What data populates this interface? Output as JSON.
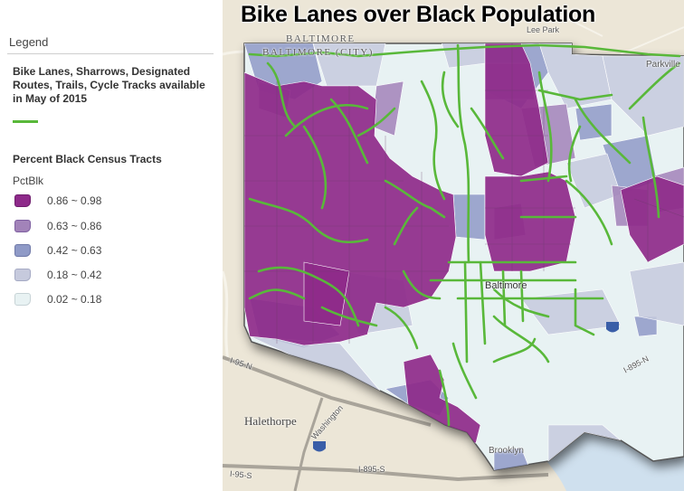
{
  "map": {
    "title": "Bike Lanes over Black Population",
    "labels": {
      "baltimore_upper": "BALTIMORE",
      "baltimore_city": "BALTIMORE (CITY)",
      "lee_park": "Lee Park",
      "parkville": "Parkville",
      "halethorpe": "Halethorpe",
      "baltimore_center": "Baltimore",
      "brooklyn": "Brooklyn",
      "i95_n": "I-95-N",
      "i895_s": "I-895-S",
      "i95_s": "I-95-S",
      "i895_n": "I-895-N",
      "washington": "Washington"
    },
    "colors": {
      "class_1": "#8e2a8a",
      "class_2": "#a283b9",
      "class_3": "#8f9ac7",
      "class_4": "#c6cadd",
      "class_5": "#e8f2f3",
      "bike_lane": "#59b83a",
      "basemap": "#ece6d7",
      "water": "#cfe0ee"
    }
  },
  "legend": {
    "heading": "Legend",
    "bike_layer_title": "Bike Lanes, Sharrows, Designated Routes, Trails, Cycle Tracks available in May of 2015",
    "bike_symbol_color": "#59b83a",
    "population_layer_title": "Percent Black Census Tracts",
    "field": "PctBlk",
    "classes": [
      {
        "label": "0.86 ~ 0.98",
        "color": "#8e2a8a",
        "border": "#6f1c6d"
      },
      {
        "label": "0.63 ~ 0.86",
        "color": "#a283b9",
        "border": "#7e5fa0"
      },
      {
        "label": "0.42 ~ 0.63",
        "color": "#8f9ac7",
        "border": "#6f79a8"
      },
      {
        "label": "0.18 ~ 0.42",
        "color": "#c6cadd",
        "border": "#a5aac4"
      },
      {
        "label": "0.02 ~ 0.18",
        "color": "#e8f2f3",
        "border": "#c7d3d6"
      }
    ]
  }
}
